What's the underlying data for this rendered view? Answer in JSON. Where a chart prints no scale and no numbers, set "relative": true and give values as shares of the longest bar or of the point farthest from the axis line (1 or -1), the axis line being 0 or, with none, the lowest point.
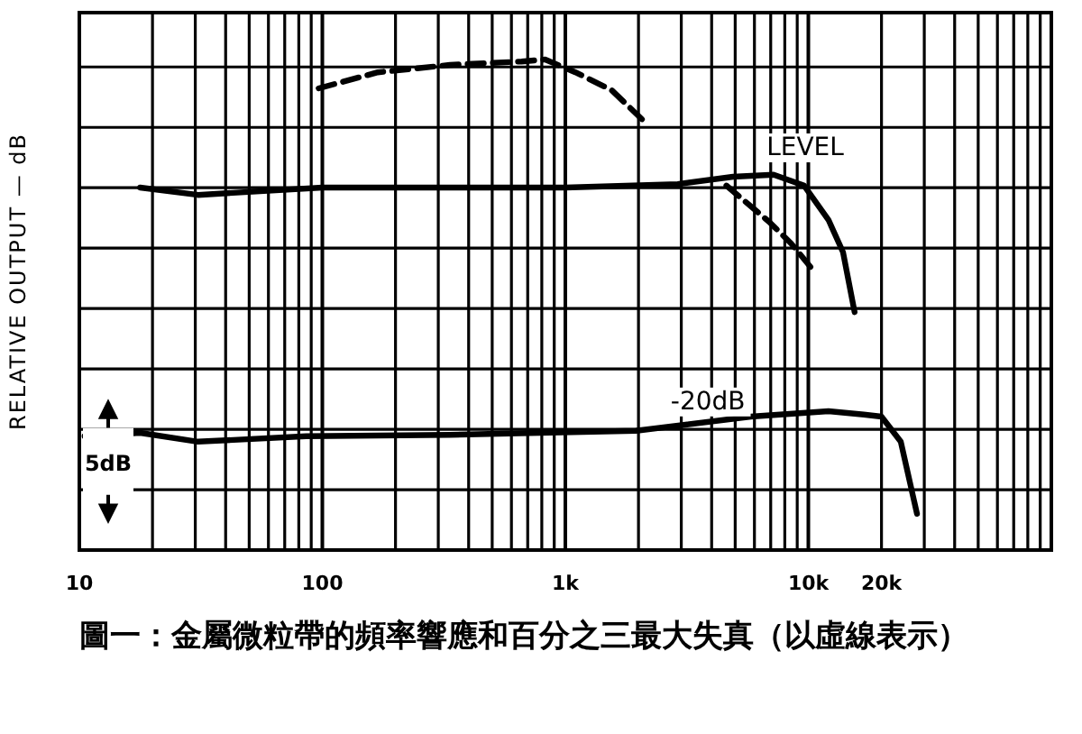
{
  "chart_data": {
    "type": "line",
    "relative": true,
    "log": "x",
    "grid": true,
    "legend": false,
    "ylabel": "RELATIVE OUTPUT — dB",
    "xlim": [
      10,
      100000
    ],
    "xticks": [
      10,
      100,
      {
        "value": 1000,
        "label": "1k"
      },
      {
        "value": 10000,
        "label": "10k"
      },
      {
        "value": 20000,
        "label": "20k"
      }
    ],
    "series": [
      {
        "name": "LEVEL",
        "color": "#000000",
        "line_style": "solid",
        "x": [
          17.8,
          30.8,
          100,
          1000,
          2900,
          4900,
          7200,
          9600,
          12100,
          13900,
          15500
        ],
        "values": [
          0.739,
          0.724,
          0.739,
          0.739,
          0.746,
          0.761,
          0.765,
          0.743,
          0.673,
          0.607,
          0.485
        ]
      },
      {
        "color": "#000000",
        "line_style": "dashed",
        "x": [
          96.6,
          169,
          335,
          660,
          826,
          1100,
          1550,
          2100
        ],
        "values": [
          0.941,
          0.974,
          0.989,
          0.996,
          1.0,
          0.974,
          0.938,
          0.875
        ]
      },
      {
        "color": "#000000",
        "line_style": "dashed",
        "x": [
          4600,
          6900,
          8500,
          10500
        ],
        "values": [
          0.743,
          0.669,
          0.625,
          0.57
        ]
      },
      {
        "name": "-20dB",
        "color": "#000000",
        "line_style": "solid",
        "x": [
          10.5,
          17.8,
          30.8,
          85.8,
          335,
          786,
          1950,
          5800,
          12100,
          16900,
          20000,
          24000,
          28000
        ],
        "values": [
          0.232,
          0.239,
          0.221,
          0.232,
          0.235,
          0.239,
          0.243,
          0.272,
          0.283,
          0.276,
          0.272,
          0.221,
          0.074
        ]
      }
    ],
    "annotations": [
      "5dB",
      "圖一：金屬微粒帶的頻率響應和百分之三最大失真（以虛線表示）"
    ]
  }
}
